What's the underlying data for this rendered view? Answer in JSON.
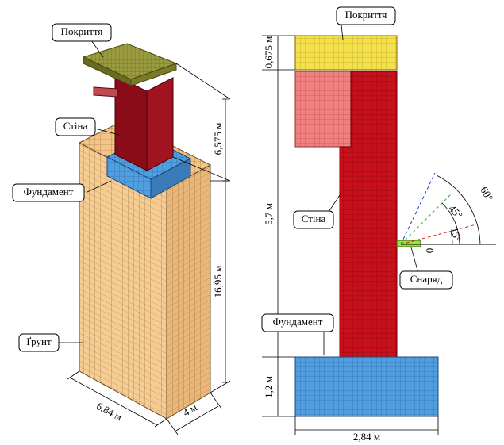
{
  "left": {
    "labels": {
      "cover": "Покриття",
      "wall": "Стіна",
      "foundation": "Фундамент",
      "soil": "Ґрунт"
    },
    "dimensions": {
      "wall_height": "6,575 м",
      "soil_height": "16,95 м",
      "width": "6,84 м",
      "depth": "4 м"
    }
  },
  "right": {
    "labels": {
      "cover": "Покриття",
      "wall": "Стіна",
      "foundation": "Фундамент",
      "projectile": "Снаряд"
    },
    "dimensions": {
      "cover_height": "0,675 м",
      "wall_height": "5,7 м",
      "foundation_height": "1,2 м",
      "foundation_width": "2,84 м"
    },
    "angles": [
      "60°",
      "45°",
      "15°",
      "0"
    ]
  }
}
